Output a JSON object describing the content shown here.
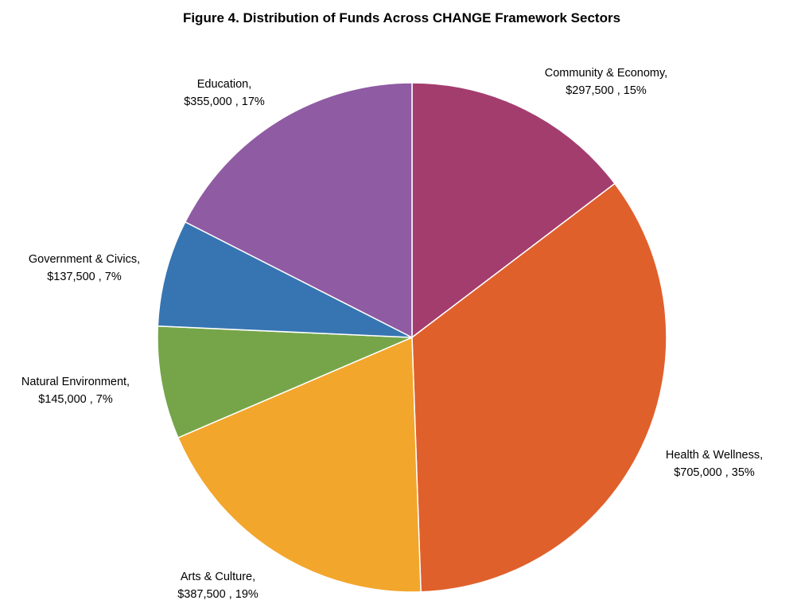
{
  "chart_data": {
    "type": "pie",
    "title": "Figure 4. Distribution of Funds Across CHANGE Framework Sectors",
    "start_angle_deg": 0,
    "direction": "clockwise",
    "slices": [
      {
        "name": "Community & Economy",
        "value": 297500,
        "value_label": "$297,500",
        "percent_label": "15%",
        "color": "#A33D6E"
      },
      {
        "name": "Health & Wellness",
        "value": 705000,
        "value_label": "$705,000",
        "percent_label": "35%",
        "color": "#E0602C"
      },
      {
        "name": "Arts & Culture",
        "value": 387500,
        "value_label": "$387,500",
        "percent_label": "19%",
        "color": "#F2A62C"
      },
      {
        "name": "Natural Environment",
        "value": 145000,
        "value_label": "$145,000",
        "percent_label": "7%",
        "color": "#75A548"
      },
      {
        "name": "Government & Civics",
        "value": 137500,
        "value_label": "$137,500",
        "percent_label": "7%",
        "color": "#3775B2"
      },
      {
        "name": "Education",
        "value": 355000,
        "value_label": "$355,000",
        "percent_label": "17%",
        "color": "#8F5BA3"
      }
    ]
  }
}
